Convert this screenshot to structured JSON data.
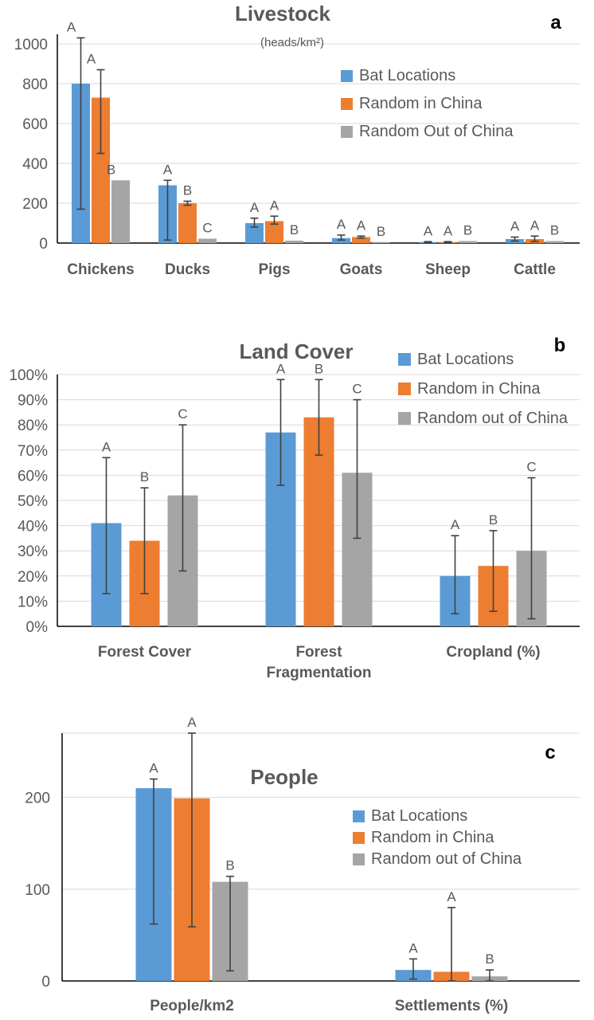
{
  "chart_data": [
    {
      "type": "bar",
      "panel_label": "a",
      "title": "Livestock",
      "subtitle": "(heads/km²)",
      "categories": [
        "Chickens",
        "Ducks",
        "Pigs",
        "Goats",
        "Sheep",
        "Cattle"
      ],
      "ylim": [
        0,
        1000
      ],
      "yticks": [
        "0",
        "200",
        "400",
        "600",
        "800",
        "1000"
      ],
      "ytick_values": [
        0,
        200,
        400,
        600,
        800,
        1000
      ],
      "grid": true,
      "legend_position": "top-right",
      "series": [
        {
          "name": "Bat Locations",
          "color": "#5b9bd5",
          "values": [
            800,
            290,
            100,
            25,
            5,
            20
          ],
          "err_low": [
            170,
            15,
            80,
            15,
            3,
            10
          ],
          "err_high": [
            1030,
            315,
            125,
            40,
            7,
            30
          ],
          "letters": [
            "A",
            "A",
            "A",
            "A",
            "A",
            "A"
          ]
        },
        {
          "name": "Random in China",
          "color": "#ed7d31",
          "values": [
            730,
            200,
            110,
            30,
            5,
            20
          ],
          "err_low": [
            450,
            190,
            95,
            25,
            3,
            8
          ],
          "err_high": [
            870,
            210,
            135,
            35,
            7,
            35
          ],
          "letters": [
            "A",
            "B",
            "A",
            "A",
            "A",
            "A"
          ]
        },
        {
          "name": "Random Out of China",
          "color": "#a5a5a5",
          "values": [
            315,
            22,
            12,
            5,
            10,
            10
          ],
          "err_low": [
            null,
            null,
            null,
            null,
            null,
            null
          ],
          "err_high": [
            null,
            null,
            null,
            null,
            null,
            null
          ],
          "letters": [
            "B",
            "C",
            "B",
            "B",
            "B",
            "B"
          ]
        }
      ]
    },
    {
      "type": "bar",
      "panel_label": "b",
      "title": "Land Cover",
      "categories": [
        [
          "Forest Cover"
        ],
        [
          "Forest",
          "Fragmentation"
        ],
        [
          "Cropland (%)"
        ]
      ],
      "ylim": [
        0,
        100
      ],
      "yticks": [
        "0%",
        "10%",
        "20%",
        "30%",
        "40%",
        "50%",
        "60%",
        "70%",
        "80%",
        "90%",
        "100%"
      ],
      "ytick_values": [
        0,
        10,
        20,
        30,
        40,
        50,
        60,
        70,
        80,
        90,
        100
      ],
      "grid": true,
      "legend_position": "top-right",
      "series": [
        {
          "name": "Bat Locations",
          "color": "#5b9bd5",
          "values": [
            41,
            77,
            20
          ],
          "err_low": [
            13,
            56,
            5
          ],
          "err_high": [
            67,
            98,
            36
          ],
          "letters": [
            "A",
            "A",
            "A"
          ]
        },
        {
          "name": "Random in China",
          "color": "#ed7d31",
          "values": [
            34,
            83,
            24
          ],
          "err_low": [
            13,
            68,
            6
          ],
          "err_high": [
            55,
            98,
            38
          ],
          "letters": [
            "B",
            "B",
            "B"
          ]
        },
        {
          "name": "Random out of China",
          "color": "#a5a5a5",
          "values": [
            52,
            61,
            30
          ],
          "err_low": [
            22,
            35,
            3
          ],
          "err_high": [
            80,
            90,
            59
          ],
          "letters": [
            "C",
            "C",
            "C"
          ]
        }
      ]
    },
    {
      "type": "bar",
      "panel_label": "c",
      "title": "People",
      "categories": [
        "People/km2",
        "Settlements (%)"
      ],
      "ylim": [
        0,
        270
      ],
      "yticks": [
        "0",
        "100",
        "200"
      ],
      "ytick_values": [
        0,
        100,
        200
      ],
      "grid": true,
      "legend_position": "center-right",
      "series": [
        {
          "name": "Bat Locations",
          "color": "#5b9bd5",
          "values": [
            210,
            12
          ],
          "err_low": [
            62,
            2
          ],
          "err_high": [
            220,
            24
          ],
          "letters": [
            "A",
            "A"
          ]
        },
        {
          "name": "Random in China",
          "color": "#ed7d31",
          "values": [
            199,
            10
          ],
          "err_low": [
            59,
            0
          ],
          "err_high": [
            270,
            80
          ],
          "letters": [
            "A",
            "A"
          ]
        },
        {
          "name": "Random out of China",
          "color": "#a5a5a5",
          "values": [
            108,
            5
          ],
          "err_low": [
            11,
            0
          ],
          "err_high": [
            114,
            12
          ],
          "letters": [
            "B",
            "B"
          ]
        }
      ]
    }
  ]
}
